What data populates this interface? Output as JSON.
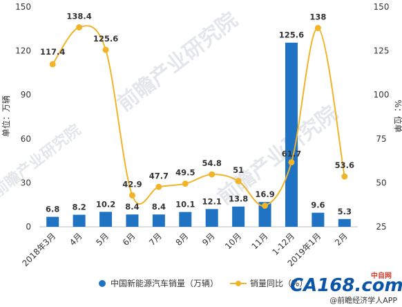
{
  "chart_data": {
    "type": "bar+line",
    "categories": [
      "2018年3月",
      "4月",
      "5月",
      "6月",
      "7月",
      "8月",
      "9月",
      "10月",
      "11月",
      "1-12月",
      "2019年1月",
      "2月"
    ],
    "series": [
      {
        "name": "中国新能源汽车销量（万辆）",
        "type": "bar",
        "axis": "left",
        "color": "#1f73c2",
        "values": [
          6.8,
          8.2,
          10.2,
          8.4,
          8.4,
          10.1,
          12.1,
          13.8,
          16.9,
          125.6,
          9.6,
          5.3
        ]
      },
      {
        "name": "销量同比（%）",
        "type": "line",
        "axis": "right",
        "color": "#f0b429",
        "values": [
          117.4,
          138.4,
          125.6,
          42.9,
          47.7,
          49.5,
          54.8,
          51,
          37,
          61.7,
          138,
          53.6
        ],
        "labels": [
          "117.4",
          "138.4",
          "125.6",
          "42.9",
          "47.7",
          "49.5",
          "54.8",
          "51",
          "",
          "61.7",
          "138",
          "53.6"
        ]
      }
    ],
    "ylabel_left": "单位：万辆",
    "ylabel_right": "%：位单",
    "ylim_left": [
      0,
      150
    ],
    "yticks_left": [
      "0",
      "30",
      "60",
      "90",
      "120",
      "150"
    ],
    "ylim_right": [
      25,
      150
    ],
    "yticks_right": [
      "25",
      "50",
      "75",
      "100",
      "125",
      "150"
    ],
    "grid": false,
    "legend": "bottom"
  },
  "watermark": {
    "text": "前瞻产业研究院",
    "small": "前瞻经济学人APP"
  },
  "footer": {
    "logo": "CA168.com",
    "logo_sub": "中自网",
    "credit": "@前瞻经济学人APP"
  }
}
